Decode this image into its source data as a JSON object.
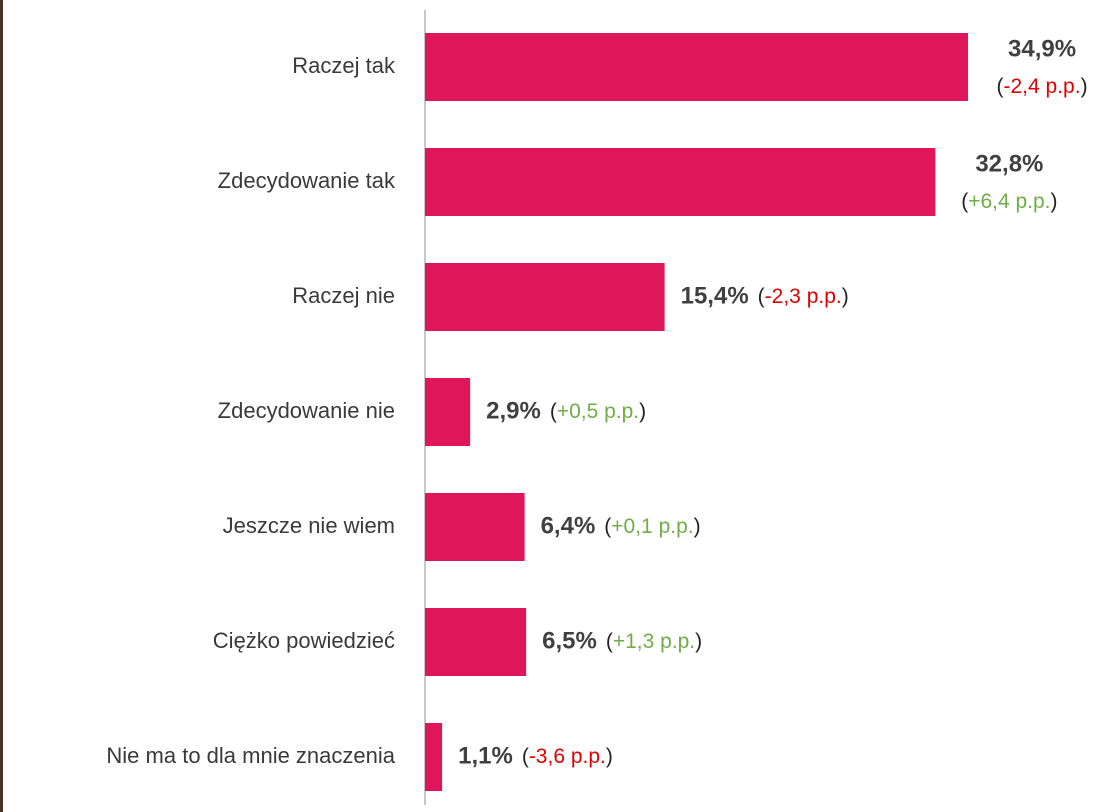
{
  "chart_data": {
    "type": "bar",
    "orientation": "horizontal",
    "categories": [
      "Raczej tak",
      "Zdecydowanie tak",
      "Raczej nie",
      "Zdecydowanie nie",
      "Jeszcze nie wiem",
      "Ciężko powiedzieć",
      "Nie ma to dla mnie znaczenia"
    ],
    "values": [
      34.9,
      32.8,
      15.4,
      2.9,
      6.4,
      6.5,
      1.1
    ],
    "value_labels": [
      "34,9%",
      "32,8%",
      "15,4%",
      "2,9%",
      "6,4%",
      "6,5%",
      "1,1%"
    ],
    "changes": [
      -2.4,
      6.4,
      -2.3,
      0.5,
      0.1,
      1.3,
      -3.6
    ],
    "change_labels": [
      "(-2,4 p.p.)",
      "(+6,4 p.p.)",
      "(-2,3 p.p.)",
      "(+0,5 p.p.)",
      "(+0,1 p.p.)",
      "(+1,3 p.p.)",
      "(-3,6 p.p.)"
    ],
    "color": "#e0165a",
    "positive_color": "#70ad47",
    "negative_color": "#e00000"
  }
}
